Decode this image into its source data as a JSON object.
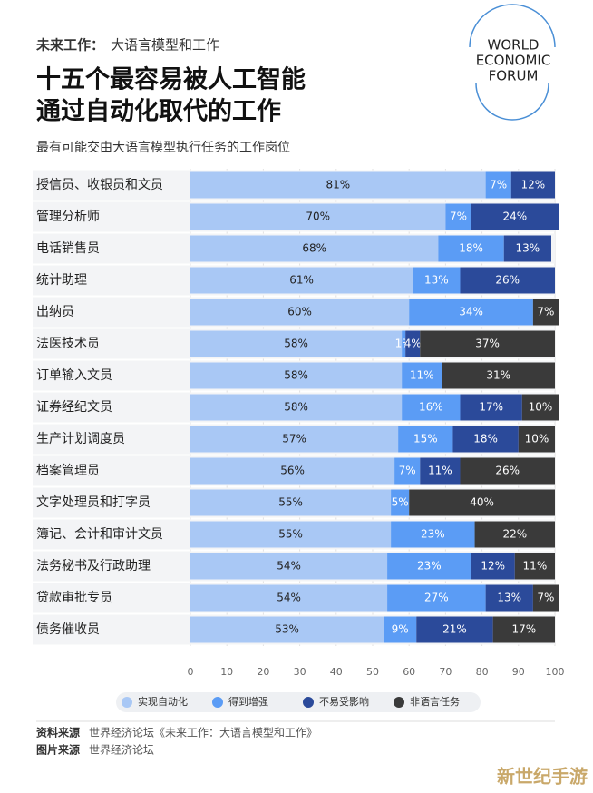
{
  "header": {
    "kicker": "未来工作：",
    "kicker_rest": "大语言模型和工作",
    "title": [
      "十五个最容易被人工智能",
      "通过自动化取代的工作"
    ],
    "subtitle": "最有可能交由大语言模型执行任务的工作岗位",
    "logo": [
      "WORLD",
      "ECONOMIC",
      "FORUM"
    ]
  },
  "chart_data": {
    "type": "stacked-barh",
    "categories": [
      "授信员、收银员和文员",
      "管理分析师",
      "电话销售员",
      "统计助理",
      "出纳员",
      "法医技术员",
      "订单输入文员",
      "证券经纪文员",
      "生产计划调度员",
      "档案管理员",
      "文字处理员和打字员",
      "簿记、会计和审计文员",
      "法务秘书及行政助理",
      "贷款审批专员",
      "债务催收员"
    ],
    "series": [
      {
        "name": "实现自动化",
        "color": "#a9c8f5",
        "values": [
          81,
          70,
          68,
          61,
          60,
          58,
          58,
          58,
          57,
          56,
          55,
          55,
          54,
          54,
          53
        ],
        "value_labels": [
          "81%",
          "70%",
          "68%",
          "61%",
          "60%",
          "58%",
          "58%",
          "58%",
          "57%",
          "56%",
          "55%",
          "55%",
          "54%",
          "54%",
          "53%"
        ]
      },
      {
        "name": "得到增强",
        "color": "#5b9cf5",
        "values": [
          7,
          7,
          18,
          13,
          34,
          1,
          11,
          16,
          15,
          7,
          5,
          23,
          23,
          27,
          9
        ],
        "value_labels": [
          "7%",
          "7%",
          "18%",
          "13%",
          "34%",
          "1%",
          "11%",
          "16%",
          "15%",
          "7%",
          "5%",
          "23%",
          "23%",
          "27%",
          "9%"
        ]
      },
      {
        "name": "不易受影响",
        "color": "#2b4a9a",
        "values": [
          12,
          24,
          13,
          26,
          null,
          4,
          null,
          17,
          18,
          11,
          null,
          null,
          12,
          13,
          21
        ],
        "value_labels": [
          "12%",
          "24%",
          "13%",
          "26%",
          null,
          "4%",
          null,
          "17%",
          "18%",
          "11%",
          null,
          null,
          "12%",
          "13%",
          "21%"
        ]
      },
      {
        "name": "非语言任务",
        "color": "#3a3a3a",
        "values": [
          null,
          null,
          null,
          null,
          7,
          37,
          31,
          10,
          10,
          26,
          40,
          22,
          11,
          7,
          17
        ],
        "value_labels": [
          null,
          null,
          null,
          null,
          "7%",
          "37%",
          "31%",
          "10%",
          "10%",
          "26%",
          "40%",
          "22%",
          "11%",
          "7%",
          "17%"
        ]
      }
    ],
    "xlim": [
      0,
      100
    ],
    "xticks": [
      0,
      10,
      20,
      30,
      40,
      50,
      60,
      70,
      80,
      90,
      100
    ],
    "grid": true
  },
  "footer": {
    "source_label": "资料来源",
    "source": "世界经济论坛《未来工作：大语言模型和工作》",
    "image_label": "图片来源",
    "image": "世界经济论坛",
    "watermark": "新世纪手游"
  }
}
